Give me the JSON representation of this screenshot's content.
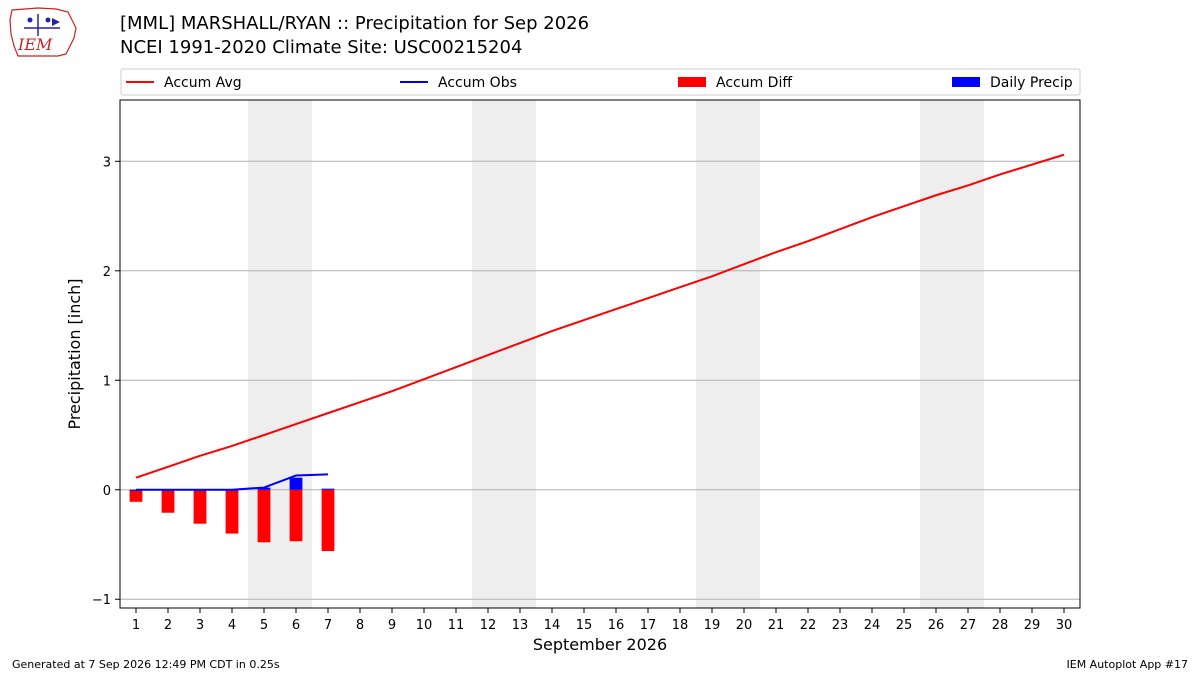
{
  "header": {
    "title_line1": "[MML] MARSHALL/RYAN :: Precipitation for Sep 2026",
    "title_line2": "NCEI 1991-2020 Climate Site: USC00215204"
  },
  "logo": {
    "text": "IEM",
    "icon": "iem-logo-icon"
  },
  "footer": {
    "generated": "Generated at 7 Sep 2026 12:49 PM CDT in 0.25s",
    "app": "IEM Autoplot App #17"
  },
  "colors": {
    "avg": "#ff0000",
    "obs": "#0000ff",
    "diff": "#ff0000",
    "daily": "#0000ff",
    "weekend": "#eeeeee",
    "grid": "#b0b0b0"
  },
  "chart_data": {
    "type": "bar",
    "xlabel": "September 2026",
    "ylabel": "Precipitation [inch]",
    "x": [
      1,
      2,
      3,
      4,
      5,
      6,
      7,
      8,
      9,
      10,
      11,
      12,
      13,
      14,
      15,
      16,
      17,
      18,
      19,
      20,
      21,
      22,
      23,
      24,
      25,
      26,
      27,
      28,
      29,
      30
    ],
    "xlim": [
      0.5,
      30.5
    ],
    "ylim": [
      -1.08,
      3.56
    ],
    "yticks": [
      -1,
      0,
      1,
      2,
      3
    ],
    "grid": "y",
    "legend_placement": "top",
    "weekend_days": [
      5,
      6,
      12,
      13,
      19,
      20,
      26,
      27
    ],
    "series": [
      {
        "name": "Accum Avg",
        "kind": "line",
        "x": [
          1,
          2,
          3,
          4,
          5,
          6,
          7,
          8,
          9,
          10,
          11,
          12,
          13,
          14,
          15,
          16,
          17,
          18,
          19,
          20,
          21,
          22,
          23,
          24,
          25,
          26,
          27,
          28,
          29,
          30
        ],
        "values": [
          0.11,
          0.21,
          0.31,
          0.4,
          0.5,
          0.6,
          0.7,
          0.8,
          0.9,
          1.01,
          1.12,
          1.23,
          1.34,
          1.45,
          1.55,
          1.65,
          1.75,
          1.85,
          1.95,
          2.06,
          2.17,
          2.27,
          2.38,
          2.49,
          2.59,
          2.69,
          2.78,
          2.88,
          2.97,
          3.06
        ]
      },
      {
        "name": "Accum Obs",
        "kind": "line",
        "x": [
          1,
          2,
          3,
          4,
          5,
          6,
          7
        ],
        "values": [
          0.0,
          0.0,
          0.0,
          0.0,
          0.02,
          0.13,
          0.14
        ]
      },
      {
        "name": "Accum Diff",
        "kind": "bar",
        "x": [
          1,
          2,
          3,
          4,
          5,
          6,
          7
        ],
        "values": [
          -0.11,
          -0.21,
          -0.31,
          -0.4,
          -0.48,
          -0.47,
          -0.56
        ]
      },
      {
        "name": "Daily Precip",
        "kind": "bar",
        "x": [
          1,
          2,
          3,
          4,
          5,
          6,
          7
        ],
        "values": [
          0.0,
          0.0,
          0.0,
          0.0,
          0.02,
          0.11,
          0.01
        ]
      }
    ]
  }
}
